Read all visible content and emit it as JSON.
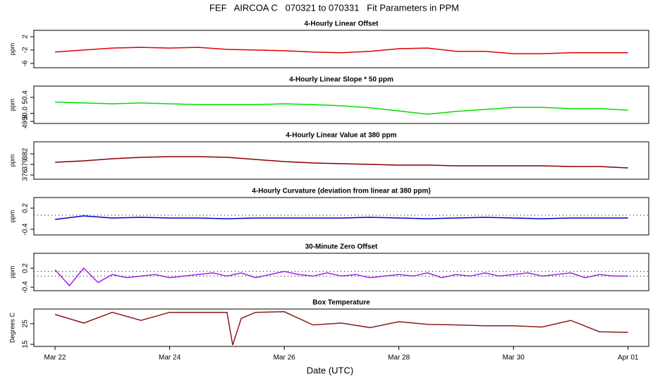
{
  "title": "FEF   AIRCOA C   070321 to 070331   Fit Parameters in PPM",
  "x_label": "Date (UTC)",
  "chart_data": [
    {
      "type": "line",
      "title": "4-Hourly Linear Offset",
      "y_label": "ppm",
      "color": "#e00000",
      "xlim": [
        21.63,
        32.36
      ],
      "ylim": [
        -7.3,
        3.9
      ],
      "yticks": [
        2,
        -2,
        -6
      ],
      "x": [
        22,
        22.5,
        23,
        23.5,
        24,
        24.5,
        25,
        25.5,
        26,
        26.5,
        27,
        27.5,
        28,
        28.5,
        29,
        29.5,
        30,
        30.5,
        31,
        31.5,
        32
      ],
      "values": [
        -2.6,
        -2.0,
        -1.4,
        -1.2,
        -1.4,
        -1.2,
        -1.8,
        -2.0,
        -2.2,
        -2.6,
        -2.8,
        -2.4,
        -1.6,
        -1.4,
        -2.4,
        -2.4,
        -3.1,
        -3.1,
        -2.8,
        -2.8,
        -2.8
      ]
    },
    {
      "type": "line",
      "title": "4-Hourly Linear Slope * 50 ppm",
      "y_label": "ppm",
      "color": "#00e000",
      "xlim": [
        21.63,
        32.36
      ],
      "ylim": [
        49.75,
        50.68
      ],
      "yticks": [
        50.4,
        {
          "value": 50,
          "label": "50.0"
        },
        49.8
      ],
      "x": [
        22,
        22.5,
        23,
        23.5,
        24,
        24.5,
        25,
        25.5,
        26,
        26.5,
        27,
        27.5,
        28,
        28.5,
        29,
        29.5,
        30,
        30.5,
        31,
        31.5,
        32
      ],
      "values": [
        50.28,
        50.26,
        50.24,
        50.26,
        50.24,
        50.22,
        50.22,
        50.22,
        50.24,
        50.22,
        50.19,
        50.14,
        50.06,
        49.98,
        50.05,
        50.1,
        50.15,
        50.15,
        50.12,
        50.12,
        50.08
      ]
    },
    {
      "type": "line",
      "title": "4-Hourly Linear Value at 380 ppm",
      "y_label": "ppm",
      "color": "#8b0000",
      "xlim": [
        21.63,
        32.36
      ],
      "ylim": [
        374.8,
        385.4
      ],
      "yticks": [
        382,
        379,
        376
      ],
      "x": [
        22,
        22.5,
        23,
        23.5,
        24,
        24.5,
        25,
        25.5,
        26,
        26.5,
        27,
        27.5,
        28,
        28.5,
        29,
        29.5,
        30,
        30.5,
        31,
        31.5,
        32
      ],
      "values": [
        379.6,
        380.0,
        380.6,
        381.0,
        381.2,
        381.2,
        381.0,
        380.4,
        379.8,
        379.4,
        379.2,
        379.0,
        378.8,
        378.8,
        378.6,
        378.6,
        378.6,
        378.6,
        378.4,
        378.4,
        378.0
      ]
    },
    {
      "type": "line",
      "title": "4-Hourly Curvature (deviation from linear at 380 ppm)",
      "y_label": "ppm",
      "color": "#0000cc",
      "xlim": [
        21.63,
        32.36
      ],
      "ylim": [
        -0.56,
        0.5
      ],
      "yticks": [
        0.2,
        -0.4
      ],
      "hlines": [
        0
      ],
      "x": [
        22,
        22.5,
        23,
        23.5,
        24,
        24.5,
        25,
        25.5,
        26,
        26.5,
        27,
        27.5,
        28,
        28.5,
        29,
        29.5,
        30,
        30.5,
        31,
        31.5,
        32
      ],
      "values": [
        -0.12,
        -0.02,
        -0.08,
        -0.06,
        -0.08,
        -0.08,
        -0.1,
        -0.08,
        -0.08,
        -0.08,
        -0.08,
        -0.06,
        -0.08,
        -0.1,
        -0.08,
        -0.06,
        -0.08,
        -0.1,
        -0.08,
        -0.08,
        -0.08
      ]
    },
    {
      "type": "line",
      "title": "30-Minute Zero Offset",
      "y_label": "ppm",
      "color": "#a020f0",
      "xlim": [
        21.63,
        32.36
      ],
      "ylim": [
        -0.51,
        0.67
      ],
      "yticks": [
        0.2,
        -0.4
      ],
      "hlines": [
        0.1,
        -0.05
      ],
      "x": [
        22,
        22.25,
        22.5,
        22.75,
        23,
        23.25,
        23.5,
        23.75,
        24,
        24.25,
        24.5,
        24.75,
        25,
        25.25,
        25.5,
        25.75,
        26,
        26.25,
        26.5,
        26.75,
        27,
        27.25,
        27.5,
        27.75,
        28,
        28.25,
        28.5,
        28.75,
        29,
        29.25,
        29.5,
        29.75,
        30,
        30.25,
        30.5,
        30.75,
        31,
        31.25,
        31.5,
        31.75,
        32
      ],
      "values": [
        0.15,
        -0.35,
        0.2,
        -0.25,
        0.0,
        -0.1,
        -0.05,
        0.0,
        -0.1,
        -0.05,
        0.0,
        0.05,
        -0.05,
        0.05,
        -0.1,
        0.0,
        0.1,
        0.0,
        -0.05,
        0.05,
        -0.05,
        0.0,
        -0.1,
        -0.05,
        0.0,
        -0.05,
        0.05,
        -0.1,
        0.0,
        -0.05,
        0.05,
        -0.05,
        0.0,
        0.05,
        -0.05,
        0.0,
        0.05,
        -0.1,
        0.0,
        -0.05,
        -0.05
      ]
    },
    {
      "type": "line",
      "title": "Box Temperature",
      "y_label": "Degrees C",
      "color": "#8b1a1a",
      "xlim": [
        21.63,
        32.36
      ],
      "ylim": [
        14,
        32.1
      ],
      "yticks": [
        25,
        15
      ],
      "xticks": [
        {
          "value": 22,
          "label": "Mar 22"
        },
        {
          "value": 24,
          "label": "Mar 24"
        },
        {
          "value": 26,
          "label": "Mar 26"
        },
        {
          "value": 28,
          "label": "Mar 28"
        },
        {
          "value": 30,
          "label": "Mar 30"
        },
        {
          "value": 32,
          "label": "Apr 01"
        }
      ],
      "x": [
        22,
        22.5,
        23,
        23.5,
        24,
        24.5,
        25,
        25.1,
        25.25,
        25.5,
        26,
        26.5,
        27,
        27.5,
        28,
        28.5,
        29,
        29.5,
        30,
        30.5,
        31,
        31.5,
        32
      ],
      "values": [
        29.5,
        25.3,
        30.5,
        26.6,
        30.5,
        30.5,
        30.5,
        14.7,
        27.6,
        30.5,
        30.8,
        24.4,
        25.3,
        23.1,
        26.0,
        24.7,
        24.4,
        24.0,
        24.0,
        23.4,
        26.6,
        21.1,
        20.8
      ]
    }
  ]
}
